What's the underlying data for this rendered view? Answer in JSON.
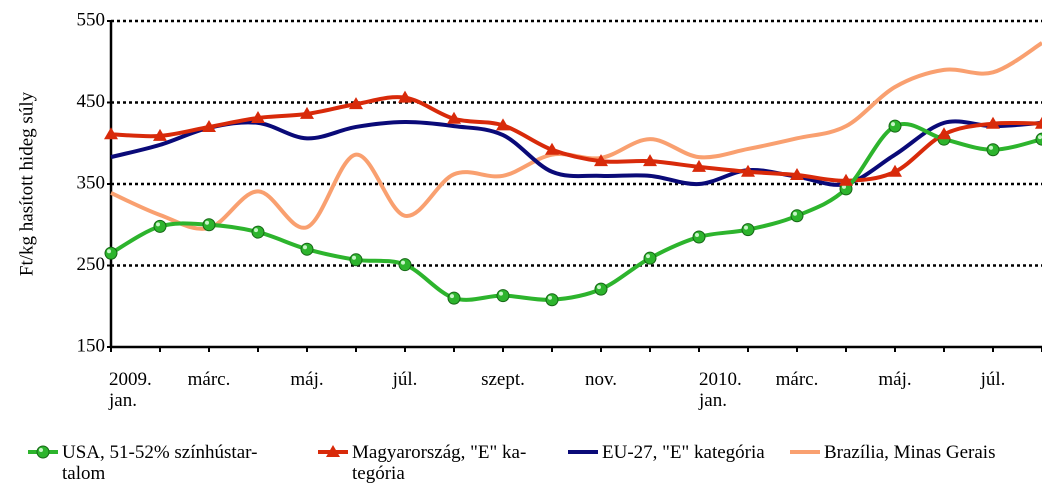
{
  "chart_data": {
    "type": "line",
    "ylabel": "Ft/kg hasított hideg súly",
    "categories": [
      "2009.\njan.",
      null,
      "márc.",
      null,
      "máj.",
      null,
      "júl.",
      null,
      "szept.",
      null,
      "nov.",
      null,
      "2010.\njan.",
      null,
      "márc.",
      null,
      "máj.",
      null,
      "júl.",
      null
    ],
    "ylim": [
      150,
      550
    ],
    "yticks": [
      150,
      250,
      350,
      450,
      550
    ],
    "grid": true,
    "smooth": true,
    "series": [
      {
        "name": "USA, 51-52% színhústar-\ntalom",
        "color": "#2db42d",
        "marker": "circle",
        "values": [
          265,
          298,
          300,
          291,
          270,
          257,
          251,
          210,
          213,
          208,
          221,
          259,
          285,
          294,
          311,
          344,
          421,
          405,
          392,
          405
        ]
      },
      {
        "name": "Magyarország, \"E\" ka-\ntegória",
        "color": "#d82a0a",
        "marker": "triangle",
        "values": [
          411,
          409,
          420,
          431,
          436,
          448,
          456,
          430,
          422,
          392,
          378,
          378,
          371,
          365,
          361,
          354,
          365,
          411,
          424,
          424
        ]
      },
      {
        "name": "EU-27, \"E\" kategória",
        "color": "#0a0a78",
        "marker": null,
        "values": [
          383,
          398,
          419,
          425,
          406,
          420,
          426,
          421,
          410,
          365,
          360,
          360,
          350,
          367,
          359,
          350,
          386,
          425,
          421,
          425
        ]
      },
      {
        "name": "Brazília, Minas Gerais",
        "color": "#f9a070",
        "marker": null,
        "values": [
          339,
          312,
          296,
          341,
          297,
          386,
          311,
          362,
          360,
          386,
          382,
          405,
          383,
          393,
          406,
          421,
          469,
          490,
          487,
          523
        ]
      }
    ]
  }
}
